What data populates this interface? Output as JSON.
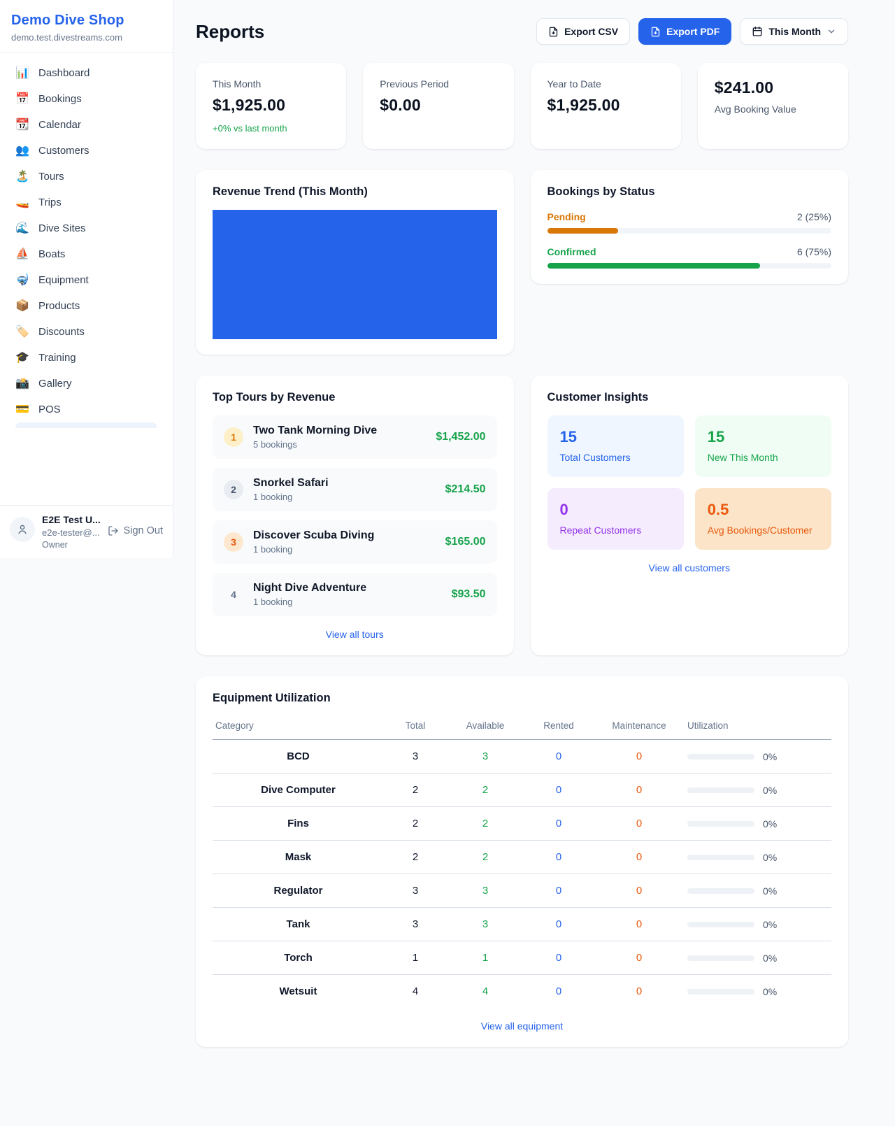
{
  "sidebar": {
    "shop_name": "Demo Dive Shop",
    "domain": "demo.test.divestreams.com",
    "items": [
      {
        "icon": "📊",
        "label": "Dashboard"
      },
      {
        "icon": "📅",
        "label": "Bookings"
      },
      {
        "icon": "📆",
        "label": "Calendar"
      },
      {
        "icon": "👥",
        "label": "Customers"
      },
      {
        "icon": "🏝️",
        "label": "Tours"
      },
      {
        "icon": "🚤",
        "label": "Trips"
      },
      {
        "icon": "🌊",
        "label": "Dive Sites"
      },
      {
        "icon": "⛵",
        "label": "Boats"
      },
      {
        "icon": "🤿",
        "label": "Equipment"
      },
      {
        "icon": "📦",
        "label": "Products"
      },
      {
        "icon": "🏷️",
        "label": "Discounts"
      },
      {
        "icon": "🎓",
        "label": "Training"
      },
      {
        "icon": "📸",
        "label": "Gallery"
      },
      {
        "icon": "💳",
        "label": "POS"
      }
    ],
    "user": {
      "name": "E2E Test U...",
      "email": "e2e-tester@...",
      "role": "Owner",
      "sign_out_label": "Sign Out"
    }
  },
  "header": {
    "title": "Reports",
    "export_csv_label": "Export CSV",
    "export_pdf_label": "Export PDF",
    "period_label": "This Month"
  },
  "stats": [
    {
      "label": "This Month",
      "value": "$1,925.00",
      "delta": "+0% vs last month"
    },
    {
      "label": "Previous Period",
      "value": "$0.00"
    },
    {
      "label": "Year to Date",
      "value": "$1,925.00"
    },
    {
      "label": "Avg Booking Value",
      "value": "$241.00"
    }
  ],
  "chart_data": [
    {
      "type": "bar",
      "title": "Revenue Trend (This Month)",
      "categories": [
        "This Month"
      ],
      "values": [
        1925.0
      ],
      "xlabel": "",
      "ylabel": "",
      "notes": "single full-width solid bar, no axes or gridlines shown",
      "bar_color": "#2563eb"
    },
    {
      "type": "bar",
      "title": "Bookings by Status",
      "categories": [
        "Pending",
        "Confirmed"
      ],
      "values": [
        2,
        6
      ],
      "percentages": [
        25,
        75
      ],
      "colors": [
        "#d97706",
        "#16a34a"
      ],
      "notes": "horizontal progress bars with counts at right"
    }
  ],
  "revenue_trend": {
    "title": "Revenue Trend (This Month)"
  },
  "bookings_status": {
    "title": "Bookings by Status",
    "rows": [
      {
        "label": "Pending",
        "count_text": "2 (25%)",
        "pct": 25
      },
      {
        "label": "Confirmed",
        "count_text": "6 (75%)",
        "pct": 75
      }
    ]
  },
  "top_tours": {
    "title": "Top Tours by Revenue",
    "rows": [
      {
        "rank": "1",
        "name": "Two Tank Morning Dive",
        "bookings": "5 bookings",
        "revenue": "$1,452.00"
      },
      {
        "rank": "2",
        "name": "Snorkel Safari",
        "bookings": "1 booking",
        "revenue": "$214.50"
      },
      {
        "rank": "3",
        "name": "Discover Scuba Diving",
        "bookings": "1 booking",
        "revenue": "$165.00"
      },
      {
        "rank": "4",
        "name": "Night Dive Adventure",
        "bookings": "1 booking",
        "revenue": "$93.50"
      }
    ],
    "view_all": "View all tours"
  },
  "customer_insights": {
    "title": "Customer Insights",
    "tiles": [
      {
        "value": "15",
        "label": "Total Customers",
        "theme": "blue"
      },
      {
        "value": "15",
        "label": "New This Month",
        "theme": "green"
      },
      {
        "value": "0",
        "label": "Repeat Customers",
        "theme": "purple"
      },
      {
        "value": "0.5",
        "label": "Avg Bookings/Customer",
        "theme": "orange"
      }
    ],
    "view_all": "View all customers"
  },
  "equipment": {
    "title": "Equipment Utilization",
    "columns": [
      "Category",
      "Total",
      "Available",
      "Rented",
      "Maintenance",
      "Utilization"
    ],
    "rows": [
      {
        "category": "BCD",
        "total": "3",
        "available": "3",
        "rented": "0",
        "maintenance": "0",
        "utilization": "0%",
        "util_pct": 0
      },
      {
        "category": "Dive Computer",
        "total": "2",
        "available": "2",
        "rented": "0",
        "maintenance": "0",
        "utilization": "0%",
        "util_pct": 0
      },
      {
        "category": "Fins",
        "total": "2",
        "available": "2",
        "rented": "0",
        "maintenance": "0",
        "utilization": "0%",
        "util_pct": 0
      },
      {
        "category": "Mask",
        "total": "2",
        "available": "2",
        "rented": "0",
        "maintenance": "0",
        "utilization": "0%",
        "util_pct": 0
      },
      {
        "category": "Regulator",
        "total": "3",
        "available": "3",
        "rented": "0",
        "maintenance": "0",
        "utilization": "0%",
        "util_pct": 0
      },
      {
        "category": "Tank",
        "total": "3",
        "available": "3",
        "rented": "0",
        "maintenance": "0",
        "utilization": "0%",
        "util_pct": 0
      },
      {
        "category": "Torch",
        "total": "1",
        "available": "1",
        "rented": "0",
        "maintenance": "0",
        "utilization": "0%",
        "util_pct": 0
      },
      {
        "category": "Wetsuit",
        "total": "4",
        "available": "4",
        "rented": "0",
        "maintenance": "0",
        "utilization": "0%",
        "util_pct": 0
      }
    ],
    "view_all": "View all equipment"
  },
  "icons": {
    "export": "file-download-icon",
    "period": "calendar-icon",
    "chevron": "chevron-down-icon",
    "avatar": "person-icon",
    "sign_out": "log-out-icon"
  },
  "colors": {
    "accent_blue": "#2563eb",
    "green": "#16a34a",
    "amber": "#d97706",
    "orange": "#ea580c",
    "purple": "#9333ea"
  }
}
